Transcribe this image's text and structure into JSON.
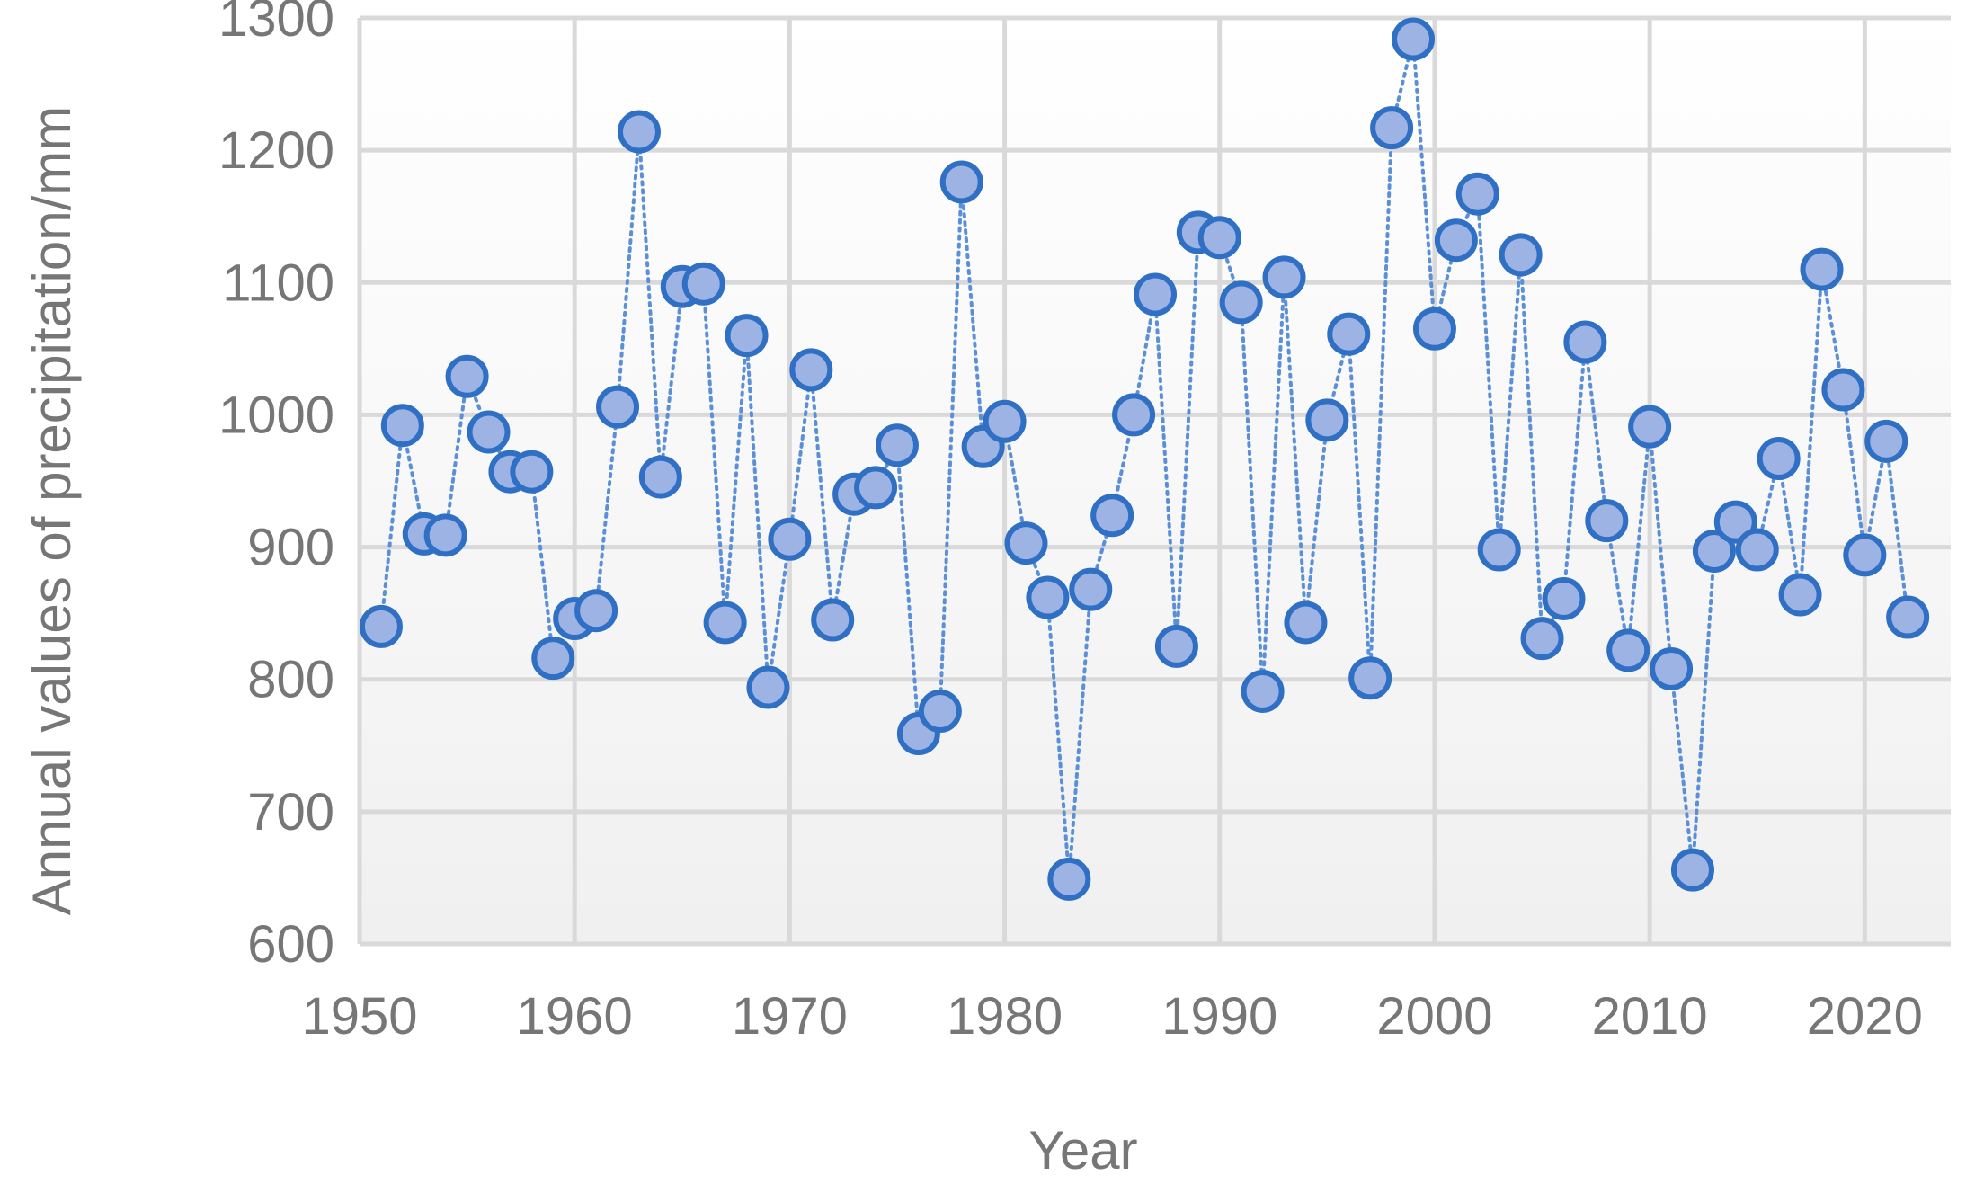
{
  "chart_data": {
    "type": "scatter",
    "title": "",
    "xlabel": "Year",
    "ylabel": "Annual values of precipitation/mm",
    "xlim": [
      1950,
      2024
    ],
    "ylim": [
      600,
      1300
    ],
    "x_ticks": [
      "1950",
      "1960",
      "1970",
      "1980",
      "1990",
      "2000",
      "2010",
      "2020"
    ],
    "y_ticks": [
      "600",
      "700",
      "800",
      "900",
      "1000",
      "1100",
      "1200",
      "1300"
    ],
    "grid": true,
    "line_style": "dotted",
    "colors": {
      "marker_fill": "#9DB3E3",
      "marker_edge": "#2F6FC4",
      "line": "#5B8FD8",
      "grid": "#D9D9D9",
      "text": "#767676"
    },
    "series": [
      {
        "x": [
          1951,
          1952,
          1953,
          1954,
          1955,
          1956,
          1957,
          1958,
          1959,
          1960,
          1961,
          1962,
          1963,
          1964,
          1965,
          1966,
          1967,
          1968,
          1969,
          1970,
          1971,
          1972,
          1973,
          1974,
          1975,
          1976,
          1977,
          1978,
          1979,
          1980,
          1981,
          1982,
          1983,
          1984,
          1985,
          1986,
          1987,
          1988,
          1989,
          1990,
          1991,
          1992,
          1993,
          1994,
          1995,
          1996,
          1997,
          1998,
          1999,
          2000,
          2001,
          2002,
          2003,
          2004,
          2005,
          2006,
          2007,
          2008,
          2009,
          2010,
          2011,
          2012,
          2013,
          2014,
          2015,
          2016,
          2017,
          2018,
          2019,
          2020,
          2021,
          2022
        ],
        "y": [
          840,
          992,
          910,
          909,
          1029,
          987,
          957,
          957,
          816,
          846,
          852,
          1006,
          1214,
          953,
          1097,
          1099,
          843,
          1060,
          794,
          906,
          1034,
          845,
          940,
          945,
          977,
          759,
          776,
          1176,
          976,
          995,
          903,
          862,
          649,
          868,
          924,
          1000,
          1091,
          825,
          1138,
          1134,
          1085,
          791,
          1104,
          843,
          996,
          1061,
          801,
          1217,
          1284,
          1065,
          1132,
          1167,
          898,
          1121,
          831,
          861,
          1055,
          920,
          822,
          991,
          808,
          656,
          897,
          919,
          898,
          967,
          864,
          1110,
          1019,
          894,
          980,
          847
        ]
      }
    ]
  }
}
